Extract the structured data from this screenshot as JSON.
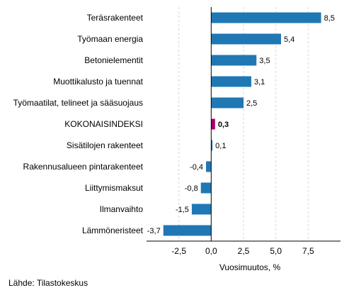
{
  "chart_data": {
    "type": "bar",
    "orientation": "horizontal",
    "categories": [
      "Teräsrakenteet",
      "Työmaan energia",
      "Betonielementit",
      "Muottikalusto ja tuennat",
      "Työmaatilat, telineet ja sääsuojaus",
      "KOKONAISINDEKSI",
      "Sisätilojen rakenteet",
      "Rakennusalueen pintarakenteet",
      "Liittymismaksut",
      "Ilmanvaihto",
      "Lämmöneristeet"
    ],
    "values": [
      8.5,
      5.4,
      3.5,
      3.1,
      2.5,
      0.3,
      0.1,
      -0.4,
      -0.8,
      -1.5,
      -3.7
    ],
    "value_labels": [
      "8,5",
      "5,4",
      "3,5",
      "3,1",
      "2,5",
      "0,3",
      "0,1",
      "-0,4",
      "-0,8",
      "-1,5",
      "-3,7"
    ],
    "highlight_category": "KOKONAISINDEKSI",
    "xlabel": "Vuosimuutos, %",
    "xlim": [
      -5,
      10
    ],
    "x_ticks": [
      -2.5,
      0,
      2.5,
      5,
      7.5
    ],
    "x_tick_labels": [
      "-2,5",
      "0,0",
      "2,5",
      "5,0",
      "7,5"
    ],
    "grid": "vertical-dashed",
    "colors": {
      "bar": "#1f78b4",
      "highlight": "#a5006b",
      "grid": "#d6d6d6",
      "axis": "#000000"
    }
  },
  "source": "Lähde: Tilastokeskus"
}
